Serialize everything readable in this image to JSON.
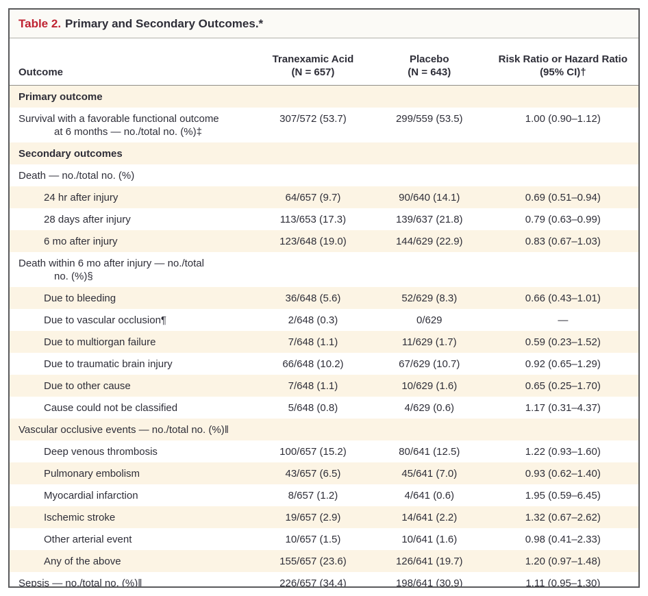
{
  "title": {
    "number": "Table 2.",
    "text": "Primary and Secondary Outcomes.*"
  },
  "colors": {
    "accent_red": "#bf2332",
    "row_stripe_cream": "#fcf4e4",
    "text": "#2e2e38",
    "outer_border": "#59595b"
  },
  "columns": [
    {
      "label": "Outcome"
    },
    {
      "line1": "Tranexamic Acid",
      "line2": "(N = 657)"
    },
    {
      "line1": "Placebo",
      "line2": "(N = 643)"
    },
    {
      "line1": "Risk Ratio or Hazard Ratio",
      "line2": "(95% CI)†"
    }
  ],
  "rows": [
    {
      "type": "section",
      "label": "Primary outcome",
      "tranexamic": "",
      "placebo": "",
      "ratio": ""
    },
    {
      "type": "item",
      "label": "Survival with a favorable functional outcome",
      "line2": "at 6 months — no./total no. (%)‡",
      "tranexamic": "307/572 (53.7)",
      "placebo": "299/559 (53.5)",
      "ratio": "1.00 (0.90–1.12)"
    },
    {
      "type": "section",
      "label": "Secondary outcomes",
      "tranexamic": "",
      "placebo": "",
      "ratio": ""
    },
    {
      "type": "item",
      "label": "Death — no./total no. (%)",
      "tranexamic": "",
      "placebo": "",
      "ratio": ""
    },
    {
      "type": "subitem",
      "label": "24 hr after injury",
      "tranexamic": "64/657 (9.7)",
      "placebo": "90/640 (14.1)",
      "ratio": "0.69 (0.51–0.94)"
    },
    {
      "type": "subitem",
      "label": "28 days after injury",
      "tranexamic": "113/653 (17.3)",
      "placebo": "139/637 (21.8)",
      "ratio": "0.79 (0.63–0.99)"
    },
    {
      "type": "subitem",
      "label": "6 mo after injury",
      "tranexamic": "123/648 (19.0)",
      "placebo": "144/629 (22.9)",
      "ratio": "0.83 (0.67–1.03)"
    },
    {
      "type": "item",
      "label": "Death within 6 mo after injury — no./total",
      "line2": "no. (%)§",
      "tranexamic": "",
      "placebo": "",
      "ratio": ""
    },
    {
      "type": "subitem",
      "label": "Due to bleeding",
      "tranexamic": "36/648 (5.6)",
      "placebo": "52/629 (8.3)",
      "ratio": "0.66 (0.43–1.01)"
    },
    {
      "type": "subitem",
      "label": "Due to vascular occlusion¶",
      "tranexamic": "2/648 (0.3)",
      "placebo": "0/629",
      "ratio": "—"
    },
    {
      "type": "subitem",
      "label": "Due to multiorgan failure",
      "tranexamic": "7/648 (1.1)",
      "placebo": "11/629 (1.7)",
      "ratio": "0.59 (0.23–1.52)"
    },
    {
      "type": "subitem",
      "label": "Due to traumatic brain injury",
      "tranexamic": "66/648 (10.2)",
      "placebo": "67/629 (10.7)",
      "ratio": "0.92 (0.65–1.29)"
    },
    {
      "type": "subitem",
      "label": "Due to other cause",
      "tranexamic": "7/648 (1.1)",
      "placebo": "10/629 (1.6)",
      "ratio": "0.65 (0.25–1.70)"
    },
    {
      "type": "subitem",
      "label": "Cause could not be classified",
      "tranexamic": "5/648 (0.8)",
      "placebo": "4/629 (0.6)",
      "ratio": "1.17 (0.31–4.37)"
    },
    {
      "type": "item",
      "label": "Vascular occlusive events — no./total no. (%)‖",
      "tranexamic": "",
      "placebo": "",
      "ratio": ""
    },
    {
      "type": "subitem",
      "label": "Deep venous thrombosis",
      "tranexamic": "100/657 (15.2)",
      "placebo": "80/641 (12.5)",
      "ratio": "1.22 (0.93–1.60)"
    },
    {
      "type": "subitem",
      "label": "Pulmonary embolism",
      "tranexamic": "43/657 (6.5)",
      "placebo": "45/641 (7.0)",
      "ratio": "0.93 (0.62–1.40)"
    },
    {
      "type": "subitem",
      "label": "Myocardial infarction",
      "tranexamic": "8/657 (1.2)",
      "placebo": "4/641 (0.6)",
      "ratio": "1.95 (0.59–6.45)"
    },
    {
      "type": "subitem",
      "label": "Ischemic stroke",
      "tranexamic": "19/657 (2.9)",
      "placebo": "14/641 (2.2)",
      "ratio": "1.32 (0.67–2.62)"
    },
    {
      "type": "subitem",
      "label": "Other arterial event",
      "tranexamic": "10/657 (1.5)",
      "placebo": "10/641 (1.6)",
      "ratio": "0.98 (0.41–2.33)"
    },
    {
      "type": "subitem",
      "label": "Any of the above",
      "tranexamic": "155/657 (23.6)",
      "placebo": "126/641 (19.7)",
      "ratio": "1.20 (0.97–1.48)"
    },
    {
      "type": "item",
      "label": "Sepsis — no./total no. (%)‖",
      "tranexamic": "226/657 (34.4)",
      "placebo": "198/641 (30.9)",
      "ratio": "1.11 (0.95–1.30)"
    }
  ]
}
